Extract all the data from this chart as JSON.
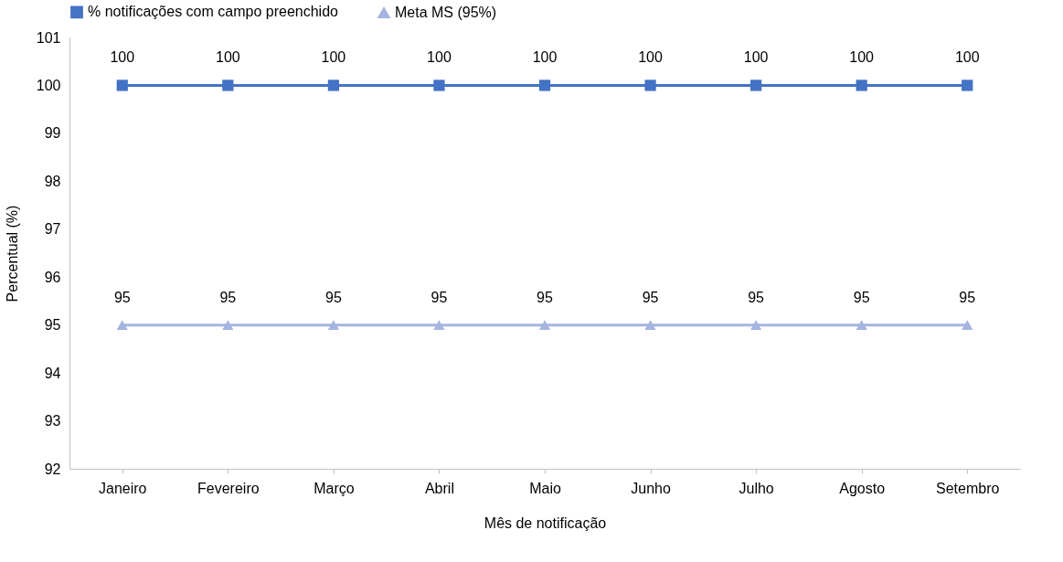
{
  "chart_data": {
    "type": "line",
    "xlabel": "Mês de notificação",
    "ylabel": "Percentual (%)",
    "categories": [
      "Janeiro",
      "Fevereiro",
      "Março",
      "Abril",
      "Maio",
      "Junho",
      "Julho",
      "Agosto",
      "Setembro"
    ],
    "series": [
      {
        "name": "% notificações com campo preenchido",
        "color": "#4472c4",
        "marker": "square",
        "values": [
          100,
          100,
          100,
          100,
          100,
          100,
          100,
          100,
          100
        ]
      },
      {
        "name": "Meta MS (95%)",
        "color": "#a5b4e0",
        "marker": "triangle",
        "values": [
          95,
          95,
          95,
          95,
          95,
          95,
          95,
          95,
          95
        ]
      }
    ],
    "ylim": [
      92,
      101
    ],
    "yticks": [
      92,
      93,
      94,
      95,
      96,
      97,
      98,
      99,
      100,
      101
    ],
    "grid": false,
    "legend": "top",
    "data_labels": true,
    "line_style": "solid"
  }
}
